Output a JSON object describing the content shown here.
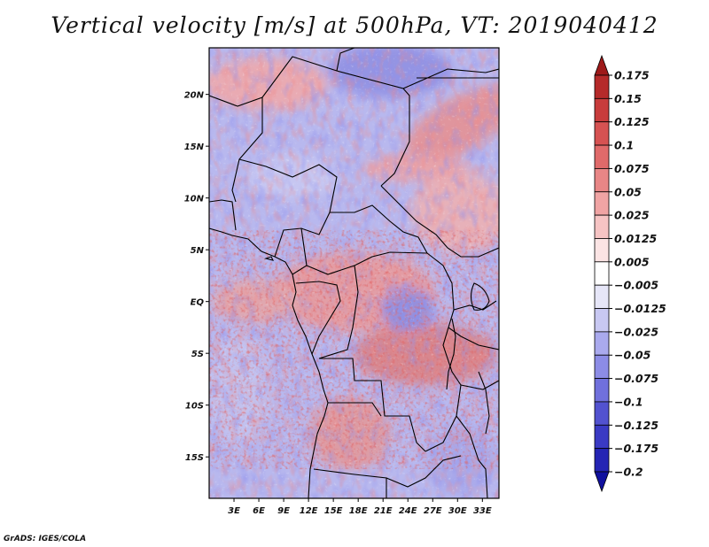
{
  "title": "Vertical velocity [m/s] at 500hPa, VT: 2019040412",
  "credit": "GrADS: IGES/COLA",
  "map": {
    "lat_range": [
      -19,
      24.5
    ],
    "lon_range": [
      0,
      35
    ],
    "lat_ticks": [
      {
        "value": 20,
        "label": "20N"
      },
      {
        "value": 15,
        "label": "15N"
      },
      {
        "value": 10,
        "label": "10N"
      },
      {
        "value": 5,
        "label": "5N"
      },
      {
        "value": 0,
        "label": "EQ"
      },
      {
        "value": -5,
        "label": "5S"
      },
      {
        "value": -10,
        "label": "10S"
      },
      {
        "value": -15,
        "label": "15S"
      }
    ],
    "lon_ticks": [
      {
        "value": 3,
        "label": "3E"
      },
      {
        "value": 6,
        "label": "6E"
      },
      {
        "value": 9,
        "label": "9E"
      },
      {
        "value": 12,
        "label": "12E"
      },
      {
        "value": 15,
        "label": "15E"
      },
      {
        "value": 18,
        "label": "18E"
      },
      {
        "value": 21,
        "label": "21E"
      },
      {
        "value": 24,
        "label": "24E"
      },
      {
        "value": 27,
        "label": "27E"
      },
      {
        "value": 30,
        "label": "30E"
      },
      {
        "value": 33,
        "label": "33E"
      }
    ]
  },
  "colorbar": {
    "labels": [
      "0.175",
      "0.15",
      "0.125",
      "0.1",
      "0.075",
      "0.05",
      "0.025",
      "0.0125",
      "0.005",
      "-0.005",
      "-0.0125",
      "-0.025",
      "-0.05",
      "-0.075",
      "-0.1",
      "-0.125",
      "-0.175",
      "-0.2"
    ],
    "colors": [
      "#9e1a1a",
      "#b52a2a",
      "#c83c3c",
      "#d65252",
      "#e06a6a",
      "#e88686",
      "#f0a4a4",
      "#f6c4c4",
      "#fbe4e4",
      "#ffffff",
      "#e6e6f8",
      "#c8c8f2",
      "#aaaaee",
      "#8c8ce6",
      "#7070dc",
      "#5252d0",
      "#3a3ac4",
      "#2424b4",
      "#10109e"
    ]
  }
}
